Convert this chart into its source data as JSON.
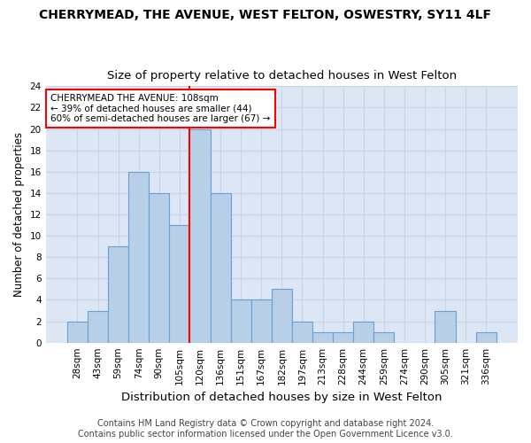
{
  "title": "CHERRYMEAD, THE AVENUE, WEST FELTON, OSWESTRY, SY11 4LF",
  "subtitle": "Size of property relative to detached houses in West Felton",
  "xlabel": "Distribution of detached houses by size in West Felton",
  "ylabel": "Number of detached properties",
  "categories": [
    "28sqm",
    "43sqm",
    "59sqm",
    "74sqm",
    "90sqm",
    "105sqm",
    "120sqm",
    "136sqm",
    "151sqm",
    "167sqm",
    "182sqm",
    "197sqm",
    "213sqm",
    "228sqm",
    "244sqm",
    "259sqm",
    "274sqm",
    "290sqm",
    "305sqm",
    "321sqm",
    "336sqm"
  ],
  "values": [
    2,
    3,
    9,
    16,
    14,
    11,
    20,
    14,
    4,
    4,
    5,
    2,
    1,
    1,
    2,
    1,
    0,
    0,
    3,
    0,
    1
  ],
  "bar_color": "#b8cfe8",
  "bar_edgecolor": "#6a9fd4",
  "bar_linewidth": 0.8,
  "ylim": [
    0,
    24
  ],
  "yticks": [
    0,
    2,
    4,
    6,
    8,
    10,
    12,
    14,
    16,
    18,
    20,
    22,
    24
  ],
  "grid_color": "#c8d4e8",
  "background_color": "#dce6f5",
  "annotation_line1": "CHERRYMEAD THE AVENUE: 108sqm",
  "annotation_line2": "← 39% of detached houses are smaller (44)",
  "annotation_line3": "60% of semi-detached houses are larger (67) →",
  "annotation_box_edgecolor": "red",
  "vline_x": 5.5,
  "vline_color": "red",
  "vline_linewidth": 1.5,
  "footer_line1": "Contains HM Land Registry data © Crown copyright and database right 2024.",
  "footer_line2": "Contains public sector information licensed under the Open Government Licence v3.0.",
  "title_fontsize": 10,
  "subtitle_fontsize": 9.5,
  "xlabel_fontsize": 9.5,
  "ylabel_fontsize": 8.5,
  "tick_fontsize": 7.5,
  "annotation_fontsize": 7.5,
  "footer_fontsize": 7
}
